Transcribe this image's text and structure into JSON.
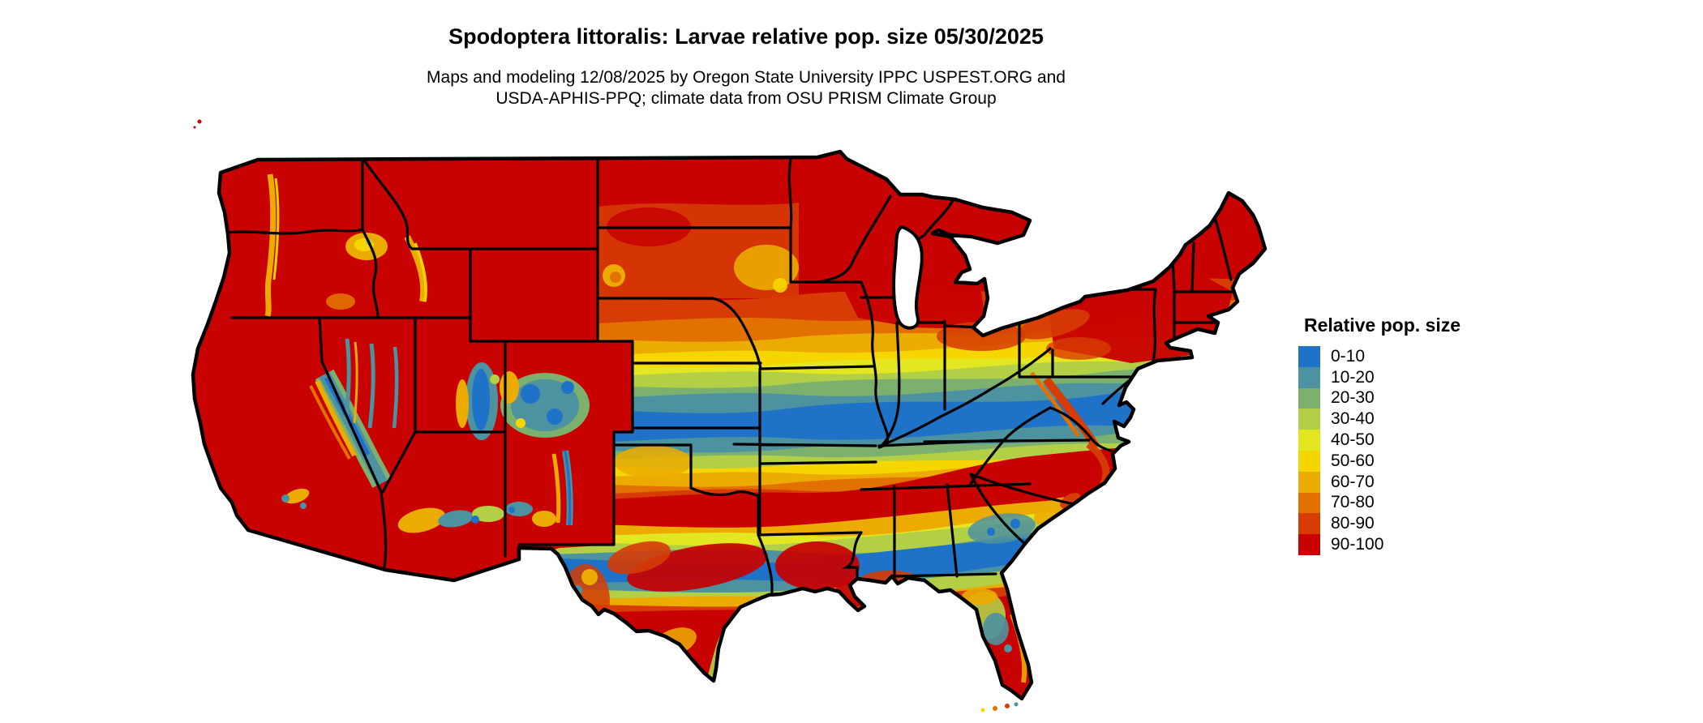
{
  "title": "Spodoptera littoralis: Larvae relative pop. size 05/30/2025",
  "subtitle_line1": "Maps and modeling 12/08/2025 by Oregon State University IPPC USPEST.ORG and",
  "subtitle_line2": "USDA-APHIS-PPQ; climate data from OSU PRISM Climate Group",
  "legend": {
    "title": "Relative pop. size",
    "items": [
      {
        "label": "0-10",
        "color": "#1E72C8"
      },
      {
        "label": "10-20",
        "color": "#4D92A0"
      },
      {
        "label": "20-30",
        "color": "#7CB06E"
      },
      {
        "label": "30-40",
        "color": "#B2CF46"
      },
      {
        "label": "40-50",
        "color": "#E3E722"
      },
      {
        "label": "50-60",
        "color": "#F6D600"
      },
      {
        "label": "60-70",
        "color": "#ECAB00"
      },
      {
        "label": "70-80",
        "color": "#E27100"
      },
      {
        "label": "80-90",
        "color": "#D63C04"
      },
      {
        "label": "90-100",
        "color": "#C80101"
      }
    ]
  },
  "colors": {
    "blue": "#1E72C8",
    "teal": "#4D92A0",
    "green": "#7CB06E",
    "lightgreen": "#B2CF46",
    "yellowgreen": "#E3E722",
    "yellow": "#F6D600",
    "amber": "#ECAB00",
    "orange": "#E27100",
    "redorange": "#D63C04",
    "red": "#C80101",
    "border": "#000000",
    "water": "#ffffff"
  },
  "map": {
    "kind": "raster choropleth of relative population size, continental United States",
    "value_classes": [
      "0-10",
      "10-20",
      "20-30",
      "30-40",
      "40-50",
      "50-60",
      "60-70",
      "70-80",
      "80-90",
      "90-100"
    ]
  }
}
